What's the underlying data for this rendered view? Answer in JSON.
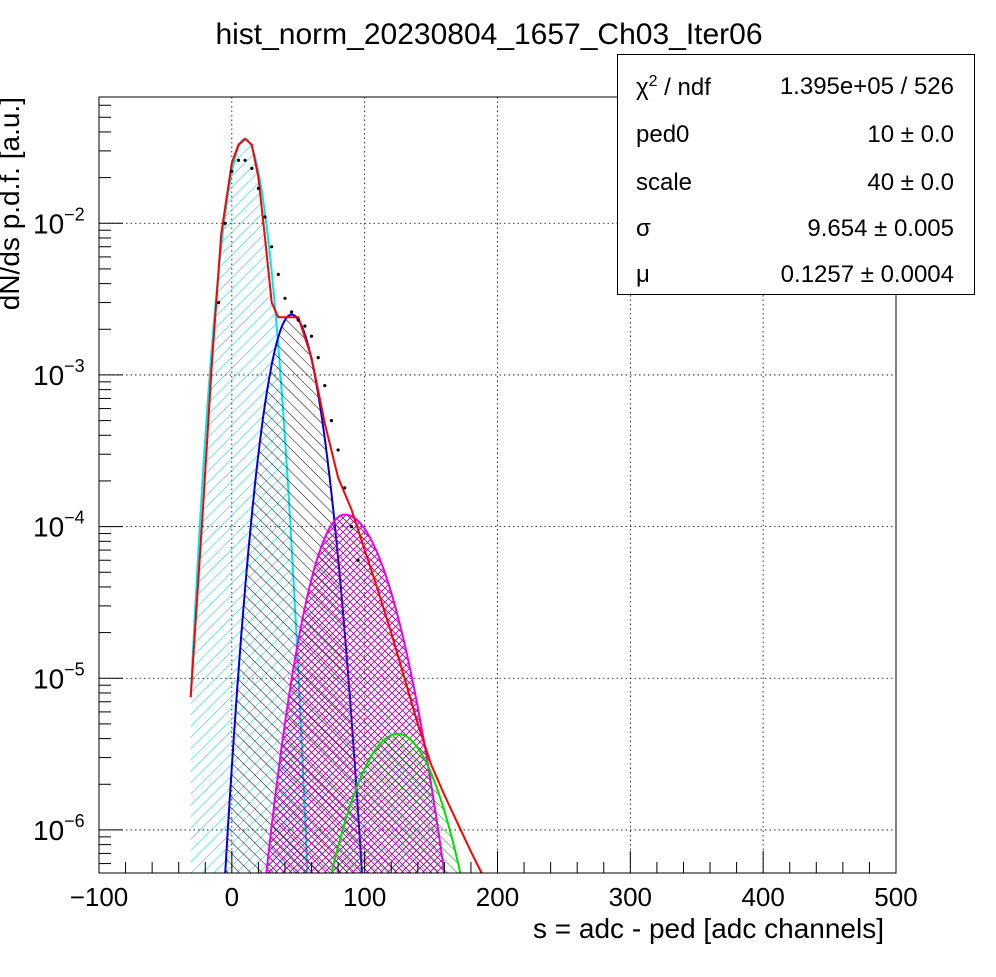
{
  "chart_data": {
    "type": "line",
    "title": "hist_norm_20230804_1657_Ch03_Iter06",
    "xlabel": "s = adc - ped [adc channels]",
    "ylabel": "dN/ds p.d.f. [a.u.]",
    "xlim": [
      -100,
      500
    ],
    "ylim": [
      5.2e-07,
      0.068
    ],
    "yscale": "log",
    "grid": true,
    "x_ticks": [
      "−100",
      "0",
      "100",
      "200",
      "300",
      "400",
      "500"
    ],
    "x_tick_values": [
      -100,
      0,
      100,
      200,
      300,
      400,
      500
    ],
    "y_ticks": [
      {
        "value": 1e-06,
        "base": "10",
        "exp": "−6"
      },
      {
        "value": 1e-05,
        "base": "10",
        "exp": "−5"
      },
      {
        "value": 0.0001,
        "base": "10",
        "exp": "−4"
      },
      {
        "value": 0.001,
        "base": "10",
        "exp": "−3"
      },
      {
        "value": 0.01,
        "base": "10",
        "exp": "−2"
      }
    ],
    "series": [
      {
        "role": "fit-total",
        "color": "#ff0000",
        "x": [
          -31,
          -22,
          -15,
          -8,
          0,
          5,
          10,
          15,
          20,
          25,
          30,
          35,
          40,
          45,
          50,
          60,
          70,
          80,
          90,
          100,
          110,
          120,
          130,
          140,
          150,
          160,
          170,
          180,
          188
        ],
        "y": [
          7.5e-06,
          0.00012,
          0.0012,
          0.0085,
          0.025,
          0.033,
          0.036,
          0.033,
          0.02,
          0.008,
          0.003,
          0.0024,
          0.0024,
          0.0024,
          0.0024,
          0.0013,
          0.00048,
          0.00021,
          0.00013,
          7e-05,
          3.8e-05,
          2e-05,
          1e-05,
          5e-06,
          2.7e-06,
          1.7e-06,
          1.1e-06,
          7.2e-07,
          5.2e-07
        ]
      },
      {
        "role": "pedestal-peak",
        "color": "#00e5ee",
        "fill": "#33ccdd",
        "center": 10,
        "peak": 0.036,
        "left_cut": -31,
        "x_at_floor": 57
      },
      {
        "role": "first-peak",
        "color": "#0000dd",
        "fill": "#000000",
        "center": 45,
        "peak": 0.0025,
        "x_at_floor": [
          -5,
          98
        ]
      },
      {
        "role": "second-peak",
        "color": "#ee00ee",
        "fill": "#aa00aa",
        "center": 85,
        "peak": 0.00012,
        "x_at_floor": [
          26,
          160
        ]
      },
      {
        "role": "third-peak",
        "color": "#00dd00",
        "fill": "#009900",
        "center": 125,
        "peak": 4.3e-06,
        "x_at_floor": [
          75,
          172
        ]
      },
      {
        "role": "data-points",
        "color": "#000000",
        "x": [
          -10,
          -5,
          0,
          5,
          10,
          15,
          20,
          25,
          30,
          35,
          40,
          45,
          50,
          55,
          60,
          65,
          70,
          75,
          80,
          85,
          90,
          95
        ],
        "y": [
          0.003,
          0.01,
          0.022,
          0.026,
          0.026,
          0.023,
          0.017,
          0.011,
          0.007,
          0.0046,
          0.0032,
          0.0026,
          0.0023,
          0.0021,
          0.0018,
          0.0013,
          0.00085,
          0.0005,
          0.00032,
          0.00018,
          0.0001,
          6e-05
        ]
      }
    ]
  },
  "stats": [
    {
      "key_base": "χ",
      "key_sup": "2",
      "key_rest": " / ndf",
      "value": "1.395e+05 / 526"
    },
    {
      "key_base": "ped0",
      "key_sup": "",
      "key_rest": "",
      "value": "10 ± 0.0"
    },
    {
      "key_base": "scale",
      "key_sup": "",
      "key_rest": "",
      "value": "40 ± 0.0"
    },
    {
      "key_base": "σ",
      "key_sup": "",
      "key_rest": "",
      "value": "9.654 ± 0.005"
    },
    {
      "key_base": "μ",
      "key_sup": "",
      "key_rest": "",
      "value": "0.1257 ± 0.0004"
    }
  ]
}
